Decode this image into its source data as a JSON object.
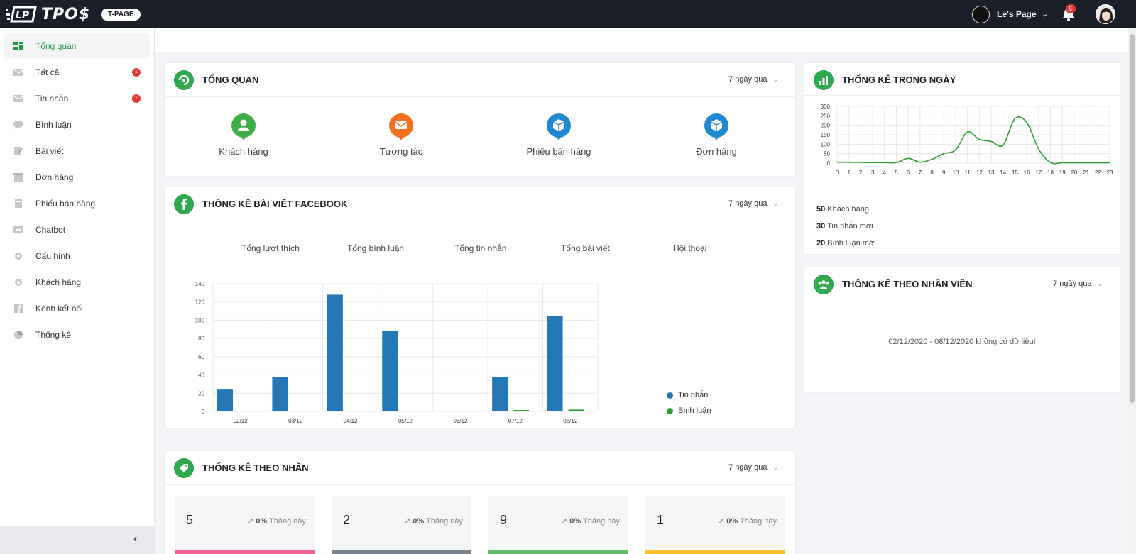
{
  "topbar": {
    "brand": "TPO$",
    "badge": "T-PAGE",
    "page_name": "Le's Page",
    "notification_count": "5"
  },
  "sidebar": {
    "items": [
      {
        "label": "Tổng quan",
        "badge": ""
      },
      {
        "label": "Tất cả",
        "badge": "1"
      },
      {
        "label": "Tin nhắn",
        "badge": "1"
      },
      {
        "label": "Bình luận",
        "badge": ""
      },
      {
        "label": "Bài viết",
        "badge": ""
      },
      {
        "label": "Đơn hàng",
        "badge": ""
      },
      {
        "label": "Phiếu bán hàng",
        "badge": ""
      },
      {
        "label": "Chatbot",
        "badge": ""
      },
      {
        "label": "Cấu hình",
        "badge": ""
      },
      {
        "label": "Khách hàng",
        "badge": ""
      },
      {
        "label": "Kênh kết nối",
        "badge": ""
      },
      {
        "label": "Thống kê",
        "badge": ""
      }
    ]
  },
  "overview": {
    "title": "TỔNG QUAN",
    "period": "7 ngày qua",
    "items": [
      "Khách hàng",
      "Tương tác",
      "Phiếu bán hàng",
      "Đơn hàng"
    ]
  },
  "facebook": {
    "title": "THỐNG KÊ BÀI VIẾT FACEBOOK",
    "period": "7 ngày qua",
    "tabs": [
      "Tổng lượt thích",
      "Tổng bình luận",
      "Tổng tin nhắn",
      "Tổng bài viết",
      "Hội thoại"
    ]
  },
  "labels_section": {
    "title": "THỐNG KÊ THEO NHÃN",
    "period": "7 ngày qua",
    "tiles": [
      {
        "value": "5",
        "pct": "0%",
        "caption": "Tháng này",
        "color": "#f06292"
      },
      {
        "value": "2",
        "pct": "0%",
        "caption": "Tháng này",
        "color": "#78838f"
      },
      {
        "value": "9",
        "pct": "0%",
        "caption": "Tháng này",
        "color": "#66bb6a"
      },
      {
        "value": "1",
        "pct": "0%",
        "caption": "Tháng này",
        "color": "#fbc02d"
      }
    ]
  },
  "daily": {
    "title": "THỐNG KÊ TRONG NGÀY",
    "stats": [
      {
        "value": "50",
        "label": "Khách hàng"
      },
      {
        "value": "30",
        "label": "Tin nhắn mới"
      },
      {
        "value": "20",
        "label": "Bình luận mới"
      }
    ]
  },
  "staff": {
    "title": "THỐNG KÊ THEO NHÂN VIÊN",
    "period": "7 ngày qua",
    "empty_message": "02/12/2020 - 08/12/2020 không có dữ liệu!"
  },
  "chart_data": [
    {
      "type": "bar",
      "title": "",
      "categories": [
        "02/12",
        "03/12",
        "04/12",
        "05/12",
        "06/12",
        "07/12",
        "08/12"
      ],
      "series": [
        {
          "name": "Tin nhắn",
          "color": "#2277b4",
          "values": [
            24,
            38,
            128,
            88,
            0,
            38,
            105
          ]
        },
        {
          "name": "Bình luận",
          "color": "#2ca02c",
          "values": [
            0,
            0,
            0,
            0,
            0,
            1,
            2
          ]
        }
      ],
      "ylim": [
        0,
        140
      ],
      "yticks": [
        0,
        20,
        40,
        60,
        80,
        100,
        120,
        140
      ],
      "legend": "right"
    },
    {
      "type": "line",
      "title": "",
      "x": [
        0,
        1,
        2,
        3,
        4,
        5,
        6,
        7,
        8,
        9,
        10,
        11,
        12,
        13,
        14,
        15,
        16,
        17,
        18,
        19,
        20,
        21,
        22,
        23
      ],
      "series": [
        {
          "name": "",
          "color": "#2ca02c",
          "values": [
            5,
            5,
            4,
            3,
            3,
            3,
            25,
            5,
            20,
            50,
            70,
            165,
            125,
            115,
            95,
            235,
            215,
            75,
            3,
            2,
            2,
            2,
            2,
            2
          ]
        }
      ],
      "ylim": [
        0,
        300
      ],
      "yticks": [
        0,
        50,
        100,
        150,
        200,
        250,
        300
      ]
    }
  ]
}
